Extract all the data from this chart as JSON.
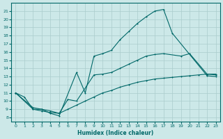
{
  "title": "",
  "xlabel": "Humidex (Indice chaleur)",
  "bg_color": "#cce8e8",
  "grid_color": "#aacccc",
  "line_color": "#006868",
  "xlim": [
    -0.5,
    23.5
  ],
  "ylim": [
    7.5,
    22
  ],
  "xticks": [
    0,
    1,
    2,
    3,
    4,
    5,
    6,
    7,
    8,
    9,
    10,
    11,
    12,
    13,
    14,
    15,
    16,
    17,
    18,
    19,
    20,
    21,
    22,
    23
  ],
  "yticks": [
    8,
    9,
    10,
    11,
    12,
    13,
    14,
    15,
    16,
    17,
    18,
    19,
    20,
    21
  ],
  "curve1_x": [
    0,
    1,
    2,
    3,
    4,
    5,
    7,
    8,
    9,
    10,
    11,
    12,
    13,
    14,
    15,
    16,
    17,
    18,
    22,
    23
  ],
  "curve1_y": [
    11,
    10.5,
    9.0,
    9.0,
    8.5,
    8.2,
    13.5,
    11.0,
    15.5,
    15.8,
    16.2,
    17.5,
    18.5,
    19.5,
    20.3,
    21.0,
    21.2,
    18.3,
    13.1,
    13.0
  ],
  "curve2_x": [
    0,
    2,
    3,
    4,
    5,
    6,
    7,
    9,
    10,
    11,
    12,
    13,
    14,
    15,
    16,
    17,
    19,
    20,
    22,
    23
  ],
  "curve2_y": [
    11,
    9.2,
    9.0,
    8.8,
    8.5,
    10.2,
    10.0,
    13.2,
    13.3,
    13.5,
    14.0,
    14.5,
    15.0,
    15.5,
    15.7,
    15.8,
    15.5,
    15.8,
    13.3,
    13.2
  ],
  "curve3_x": [
    0,
    2,
    3,
    4,
    5,
    6,
    7,
    8,
    9,
    10,
    11,
    12,
    13,
    14,
    15,
    16,
    17,
    18,
    19,
    20,
    21,
    22,
    23
  ],
  "curve3_y": [
    11,
    9.0,
    8.8,
    8.6,
    8.5,
    9.0,
    9.5,
    10.0,
    10.5,
    11.0,
    11.3,
    11.7,
    12.0,
    12.3,
    12.5,
    12.7,
    12.8,
    12.9,
    13.0,
    13.1,
    13.2,
    13.3,
    13.3
  ]
}
